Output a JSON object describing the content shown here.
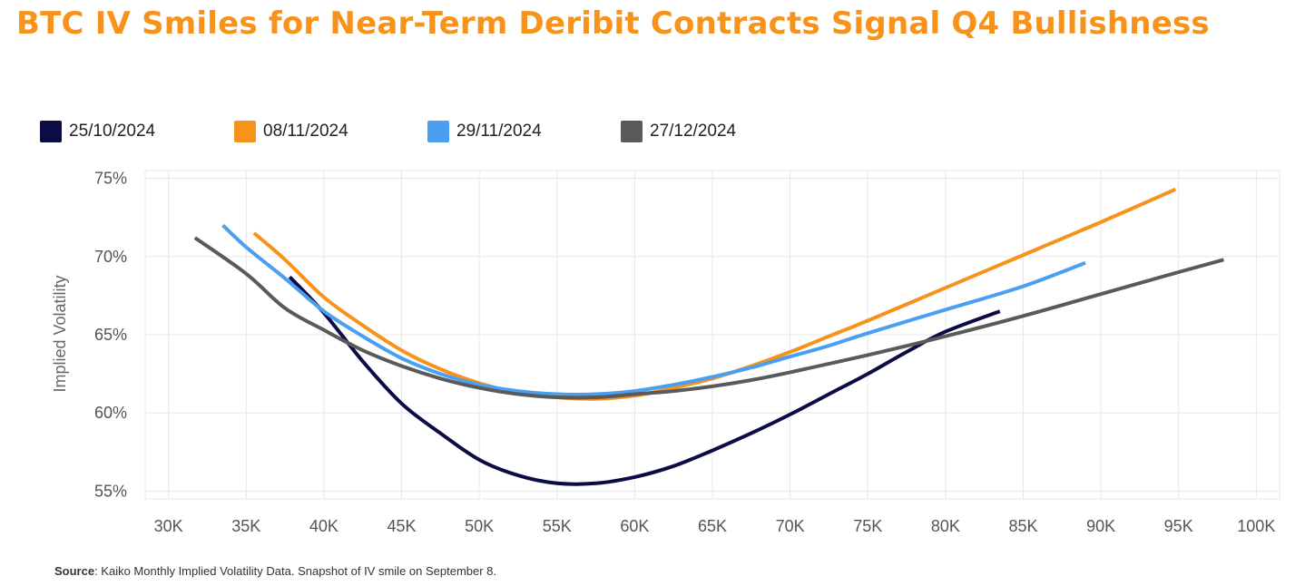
{
  "title": "BTC IV Smiles for Near-Term Deribit Contracts Signal Q4 Bullishness",
  "source": {
    "label": "Source",
    "text": ": Kaiko Monthly Implied Volatility Data. Snapshot of IV smile on September 8."
  },
  "chart_data": {
    "type": "line",
    "title": "",
    "xlabel": "",
    "ylabel": "Implied Volatility",
    "xlim": [
      28500,
      101500
    ],
    "ylim": [
      54.5,
      75.5
    ],
    "x_ticks": [
      30000,
      35000,
      40000,
      45000,
      50000,
      55000,
      60000,
      65000,
      70000,
      75000,
      80000,
      85000,
      90000,
      95000,
      100000
    ],
    "x_tick_labels": [
      "30K",
      "35K",
      "40K",
      "45K",
      "50K",
      "55K",
      "60K",
      "65K",
      "70K",
      "75K",
      "80K",
      "85K",
      "90K",
      "95K",
      "100K"
    ],
    "y_ticks": [
      55,
      60,
      65,
      70,
      75
    ],
    "y_tick_labels": [
      "55%",
      "60%",
      "65%",
      "70%",
      "75%"
    ],
    "grid": true,
    "legend_position": "top-left",
    "series": [
      {
        "name": "25/10/2024",
        "color": "#0b0b45",
        "points": [
          [
            37800,
            68.7
          ],
          [
            40000,
            66.4
          ],
          [
            42500,
            63.3
          ],
          [
            45000,
            60.6
          ],
          [
            47500,
            58.7
          ],
          [
            50000,
            57.0
          ],
          [
            52500,
            56.0
          ],
          [
            55000,
            55.5
          ],
          [
            57500,
            55.5
          ],
          [
            60000,
            55.9
          ],
          [
            62500,
            56.6
          ],
          [
            65000,
            57.6
          ],
          [
            67500,
            58.7
          ],
          [
            70000,
            59.9
          ],
          [
            72500,
            61.2
          ],
          [
            75000,
            62.5
          ],
          [
            77500,
            63.9
          ],
          [
            80000,
            65.2
          ],
          [
            83500,
            66.5
          ]
        ]
      },
      {
        "name": "08/11/2024",
        "color": "#f7931a",
        "points": [
          [
            35500,
            71.5
          ],
          [
            37500,
            69.8
          ],
          [
            40000,
            67.4
          ],
          [
            42500,
            65.6
          ],
          [
            45000,
            64.0
          ],
          [
            47500,
            62.8
          ],
          [
            50000,
            61.9
          ],
          [
            52500,
            61.3
          ],
          [
            55000,
            61.0
          ],
          [
            57500,
            60.9
          ],
          [
            60000,
            61.1
          ],
          [
            62500,
            61.6
          ],
          [
            65000,
            62.2
          ],
          [
            67500,
            63.0
          ],
          [
            70000,
            63.9
          ],
          [
            72500,
            64.9
          ],
          [
            75000,
            65.9
          ],
          [
            80000,
            68.0
          ],
          [
            85000,
            70.1
          ],
          [
            90000,
            72.2
          ],
          [
            94800,
            74.3
          ]
        ]
      },
      {
        "name": "29/11/2024",
        "color": "#4a9ff0",
        "points": [
          [
            33500,
            72.0
          ],
          [
            35000,
            70.6
          ],
          [
            37500,
            68.6
          ],
          [
            40000,
            66.5
          ],
          [
            42500,
            64.9
          ],
          [
            45000,
            63.5
          ],
          [
            47500,
            62.5
          ],
          [
            50000,
            61.8
          ],
          [
            52500,
            61.4
          ],
          [
            55000,
            61.2
          ],
          [
            57500,
            61.2
          ],
          [
            60000,
            61.4
          ],
          [
            62500,
            61.8
          ],
          [
            65000,
            62.3
          ],
          [
            67500,
            62.9
          ],
          [
            70000,
            63.6
          ],
          [
            72500,
            64.3
          ],
          [
            75000,
            65.1
          ],
          [
            80000,
            66.6
          ],
          [
            85000,
            68.1
          ],
          [
            89000,
            69.6
          ]
        ]
      },
      {
        "name": "27/12/2024",
        "color": "#5a5a5a",
        "points": [
          [
            31700,
            71.2
          ],
          [
            35000,
            68.9
          ],
          [
            37500,
            66.7
          ],
          [
            40000,
            65.3
          ],
          [
            42500,
            64.0
          ],
          [
            45000,
            63.0
          ],
          [
            47500,
            62.2
          ],
          [
            50000,
            61.6
          ],
          [
            52500,
            61.2
          ],
          [
            55000,
            61.0
          ],
          [
            57500,
            61.0
          ],
          [
            60000,
            61.2
          ],
          [
            62500,
            61.4
          ],
          [
            65000,
            61.7
          ],
          [
            67500,
            62.1
          ],
          [
            70000,
            62.6
          ],
          [
            75000,
            63.7
          ],
          [
            80000,
            64.9
          ],
          [
            85000,
            66.2
          ],
          [
            90000,
            67.6
          ],
          [
            95000,
            69.0
          ],
          [
            97900,
            69.8
          ]
        ]
      }
    ]
  }
}
